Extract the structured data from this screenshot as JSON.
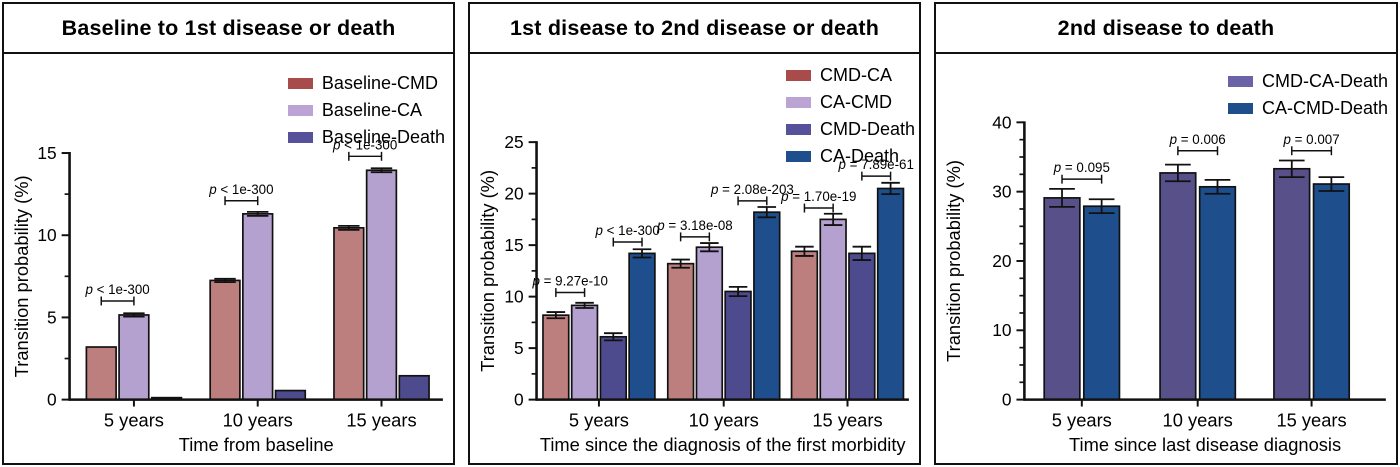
{
  "chart_data": [
    {
      "type": "bar",
      "title": "Baseline to 1st disease or death",
      "xlabel": "Time from baseline",
      "ylabel": "Transition probability (%)",
      "categories": [
        "5 years",
        "10 years",
        "15 years"
      ],
      "ylim": [
        0,
        15
      ],
      "ytick_major": [
        0,
        5,
        10,
        15
      ],
      "ytick_minor_step": 2.5,
      "grid": "off",
      "legend_position": "top-right",
      "series": [
        {
          "name": "Baseline-CMD",
          "color": "#BD7E7E",
          "legend_color": "#A94B4A",
          "values": [
            3.2,
            7.25,
            10.45
          ],
          "errors": [
            0.08,
            0.1,
            0.12
          ]
        },
        {
          "name": "Baseline-CA",
          "color": "#B5A1CF",
          "legend_color": "#BBA4D3",
          "values": [
            5.15,
            11.3,
            13.95
          ],
          "errors": [
            0.1,
            0.12,
            0.12
          ]
        },
        {
          "name": "Baseline-Death",
          "color": "#4E4A8E",
          "legend_color": "#57519C",
          "values": [
            0.12,
            0.55,
            1.45
          ],
          "errors": [
            0.03,
            0.06,
            0.08
          ]
        }
      ],
      "annotations": [
        {
          "category": 0,
          "between": [
            0,
            1
          ],
          "y": 6.0,
          "label": "p < 1e-300"
        },
        {
          "category": 1,
          "between": [
            0,
            1
          ],
          "y": 12.1,
          "label": "p < 1e-300"
        },
        {
          "category": 2,
          "between": [
            0,
            1
          ],
          "y": 14.8,
          "label": "p < 1e-300"
        }
      ]
    },
    {
      "type": "bar",
      "title": "1st disease to 2nd disease or death",
      "xlabel": "Time since the diagnosis of the first morbidity",
      "ylabel": "Transition probability (%)",
      "categories": [
        "5 years",
        "10 years",
        "15 years"
      ],
      "ylim": [
        0,
        25
      ],
      "ytick_major": [
        0,
        5,
        10,
        15,
        20,
        25
      ],
      "ytick_minor_step": 2.5,
      "grid": "off",
      "legend_position": "top-right",
      "series": [
        {
          "name": "CMD-CA",
          "color": "#BD7E7E",
          "legend_color": "#A94B4A",
          "values": [
            8.2,
            13.2,
            14.4
          ],
          "errors": [
            0.3,
            0.4,
            0.45
          ]
        },
        {
          "name": "CA-CMD",
          "color": "#B5A1CF",
          "legend_color": "#BBA4D3",
          "values": [
            9.15,
            14.8,
            17.5
          ],
          "errors": [
            0.25,
            0.4,
            0.55
          ]
        },
        {
          "name": "CMD-Death",
          "color": "#4E4A8E",
          "legend_color": "#57519C",
          "values": [
            6.1,
            10.5,
            14.2
          ],
          "errors": [
            0.35,
            0.45,
            0.65
          ]
        },
        {
          "name": "CA-Death",
          "color": "#1E4E8C",
          "legend_color": "#1E4E8C",
          "values": [
            14.2,
            18.2,
            20.5
          ],
          "errors": [
            0.4,
            0.5,
            0.55
          ]
        }
      ],
      "annotations": [
        {
          "category": 0,
          "between": [
            0,
            1
          ],
          "y": 10.4,
          "label": "p = 9.27e-10"
        },
        {
          "category": 0,
          "between": [
            2,
            3
          ],
          "y": 15.3,
          "label": "p < 1e-300"
        },
        {
          "category": 1,
          "between": [
            0,
            1
          ],
          "y": 15.8,
          "label": "p = 3.18e-08"
        },
        {
          "category": 1,
          "between": [
            2,
            3
          ],
          "y": 19.3,
          "label": "p = 2.08e-203"
        },
        {
          "category": 2,
          "between": [
            0,
            1
          ],
          "y": 18.6,
          "label": "p = 1.70e-19"
        },
        {
          "category": 2,
          "between": [
            2,
            3
          ],
          "y": 21.7,
          "label": "p = 7.89e-61"
        }
      ]
    },
    {
      "type": "bar",
      "title": "2nd disease to death",
      "xlabel": "Time since last disease diagnosis",
      "ylabel": "Transition probability (%)",
      "categories": [
        "5 years",
        "10 years",
        "15 years"
      ],
      "ylim": [
        0,
        40
      ],
      "ytick_major": [
        0,
        10,
        20,
        30,
        40
      ],
      "ytick_minor_step": 2.5,
      "grid": "off",
      "legend_position": "top-right",
      "series": [
        {
          "name": "CMD-CA-Death",
          "color": "#575089",
          "legend_color": "#6B63A8",
          "values": [
            29.1,
            32.7,
            33.3
          ],
          "errors": [
            1.3,
            1.2,
            1.2
          ]
        },
        {
          "name": "CA-CMD-Death",
          "color": "#1E4E8C",
          "legend_color": "#1E4E8C",
          "values": [
            27.9,
            30.7,
            31.1
          ],
          "errors": [
            1.0,
            1.0,
            1.0
          ]
        }
      ],
      "annotations": [
        {
          "category": 0,
          "between": [
            0,
            1
          ],
          "y": 31.8,
          "label": "p = 0.095"
        },
        {
          "category": 1,
          "between": [
            0,
            1
          ],
          "y": 35.9,
          "label": "p = 0.006"
        },
        {
          "category": 2,
          "between": [
            0,
            1
          ],
          "y": 35.9,
          "label": "p = 0.007"
        }
      ]
    }
  ]
}
